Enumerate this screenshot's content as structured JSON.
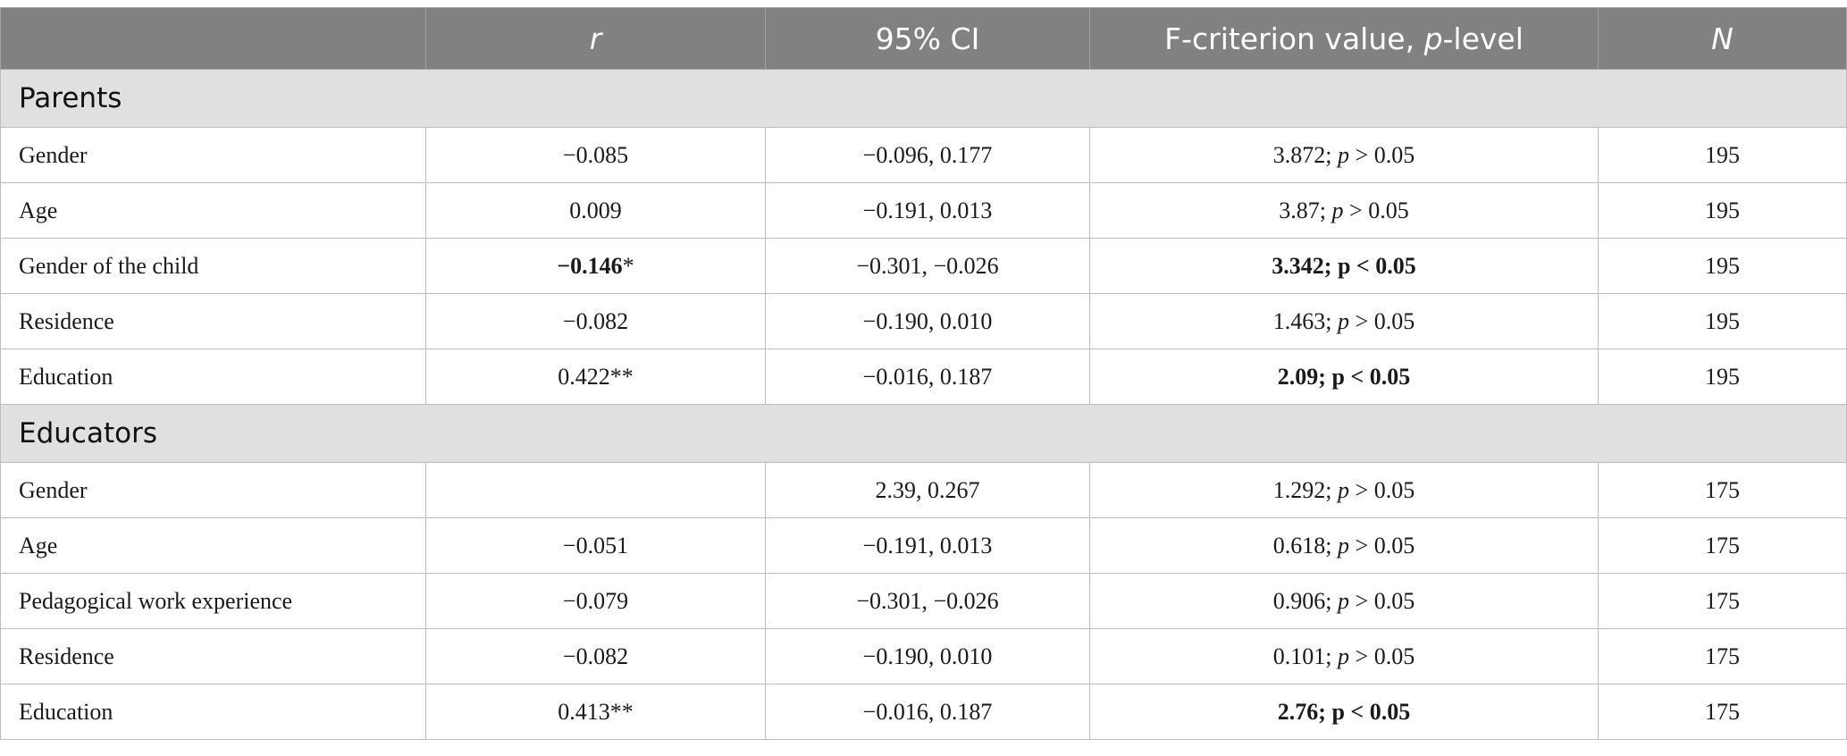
{
  "header": {
    "col0": "",
    "col1": "r",
    "col2": "95% CI",
    "col3_pre": "F-criterion value, ",
    "col3_it": "p",
    "col3_post": "-level",
    "col4": "N"
  },
  "parents": {
    "title": "Parents",
    "rows": [
      {
        "label": "Gender",
        "r": "−0.085",
        "r_star": "",
        "ci": "−0.096, 0.177",
        "f": "3.872; ",
        "p": "p",
        "pv": " > 0.05",
        "n": "195"
      },
      {
        "label": "Age",
        "r": "0.009",
        "r_star": "",
        "ci": "−0.191, 0.013",
        "f": "3.87; ",
        "p": "p",
        "pv": " > 0.05",
        "n": "195"
      },
      {
        "label": "Gender of the child",
        "r": "−0.146",
        "r_star": "*",
        "ci": "−0.301, −0.026",
        "fbold": "3.342; p < 0.05",
        "n": "195"
      },
      {
        "label": "Residence",
        "r": "−0.082",
        "r_star": "",
        "ci": "−0.190, 0.010",
        "f": "1.463; ",
        "p": "p",
        "pv": " > 0.05",
        "n": "195"
      },
      {
        "label": "Education",
        "r": "0.422**",
        "r_star": "",
        "ci": "−0.016, 0.187",
        "fbold": "2.09; p < 0.05",
        "n": "195"
      }
    ]
  },
  "educators": {
    "title": "Educators",
    "rows": [
      {
        "label": "Gender",
        "r": "",
        "ci": "2.39, 0.267",
        "f": "1.292; ",
        "p": "p",
        "pv": " > 0.05",
        "n": "175"
      },
      {
        "label": "Age",
        "r": "−0.051",
        "ci": "−0.191, 0.013",
        "f": "0.618; ",
        "p": "p",
        "pv": " > 0.05",
        "n": "175"
      },
      {
        "label": "Pedagogical work experience",
        "r": "−0.079",
        "ci": "−0.301, −0.026",
        "f": "0.906; ",
        "p": "p",
        "pv": " > 0.05",
        "n": "175"
      },
      {
        "label": "Residence",
        "r": "−0.082",
        "ci": "−0.190, 0.010",
        "f": "0.101; ",
        "p": "p",
        "pv": " > 0.05",
        "n": "175"
      },
      {
        "label": "Education",
        "r": "0.413**",
        "ci": "−0.016, 0.187",
        "fbold": "2.76; p < 0.05",
        "n": "175"
      }
    ]
  }
}
